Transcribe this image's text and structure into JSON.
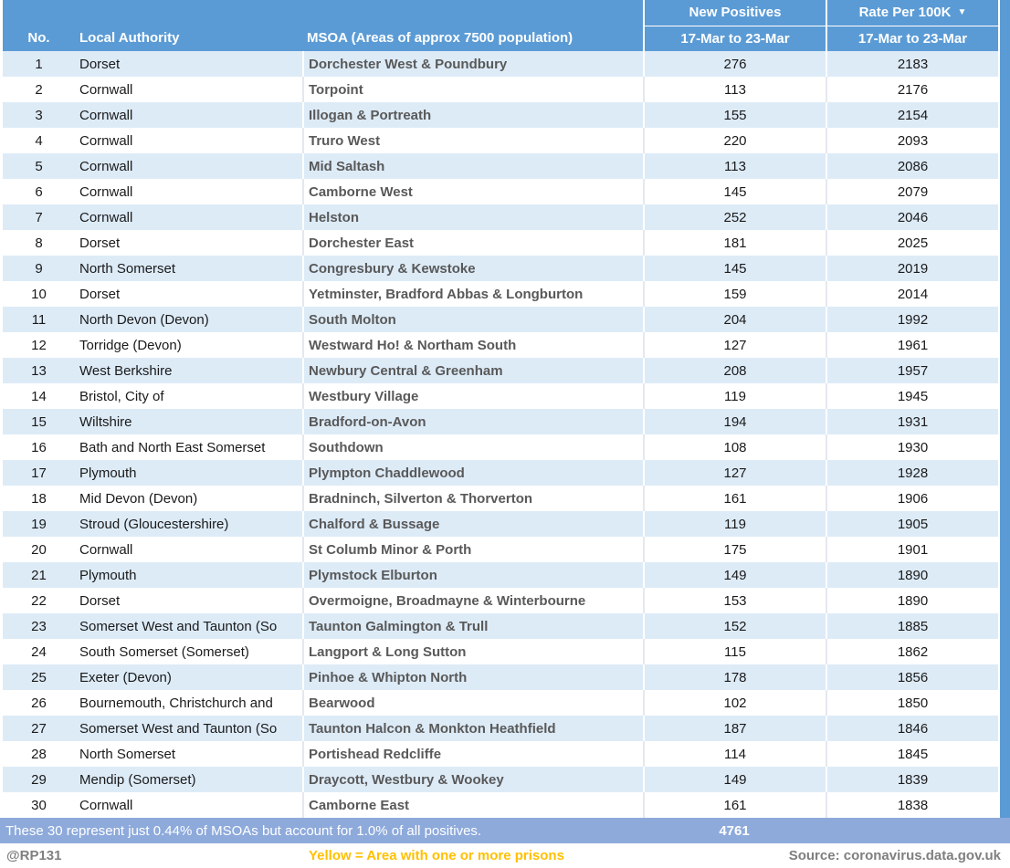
{
  "table": {
    "header": {
      "no": "No.",
      "local_authority": "Local Authority",
      "msoa": "MSOA (Areas of approx 7500 population)",
      "new_positives": "New Positives",
      "rate": "Rate Per 100K",
      "period": "17-Mar to 23-Mar",
      "sort_icon": "▼"
    }
  },
  "chart_data": {
    "type": "table",
    "columns": [
      "No.",
      "Local Authority",
      "MSOA (Areas of approx 7500 population)",
      "New Positives 17-Mar to 23-Mar",
      "Rate Per 100K 17-Mar to 23-Mar"
    ],
    "sorted_by": "Rate Per 100K (descending)",
    "rows": [
      [
        1,
        "Dorset",
        "Dorchester West & Poundbury",
        276,
        2183
      ],
      [
        2,
        "Cornwall",
        "Torpoint",
        113,
        2176
      ],
      [
        3,
        "Cornwall",
        "Illogan & Portreath",
        155,
        2154
      ],
      [
        4,
        "Cornwall",
        "Truro West",
        220,
        2093
      ],
      [
        5,
        "Cornwall",
        "Mid Saltash",
        113,
        2086
      ],
      [
        6,
        "Cornwall",
        "Camborne West",
        145,
        2079
      ],
      [
        7,
        "Cornwall",
        "Helston",
        252,
        2046
      ],
      [
        8,
        "Dorset",
        "Dorchester East",
        181,
        2025
      ],
      [
        9,
        "North Somerset",
        "Congresbury & Kewstoke",
        145,
        2019
      ],
      [
        10,
        "Dorset",
        "Yetminster, Bradford Abbas & Longburton",
        159,
        2014
      ],
      [
        11,
        "North Devon (Devon)",
        "South Molton",
        204,
        1992
      ],
      [
        12,
        "Torridge (Devon)",
        "Westward Ho! & Northam South",
        127,
        1961
      ],
      [
        13,
        "West Berkshire",
        "Newbury Central & Greenham",
        208,
        1957
      ],
      [
        14,
        "Bristol, City of",
        "Westbury Village",
        119,
        1945
      ],
      [
        15,
        "Wiltshire",
        "Bradford-on-Avon",
        194,
        1931
      ],
      [
        16,
        "Bath and North East Somerset",
        "Southdown",
        108,
        1930
      ],
      [
        17,
        "Plymouth",
        "Plympton Chaddlewood",
        127,
        1928
      ],
      [
        18,
        "Mid Devon (Devon)",
        "Bradninch, Silverton & Thorverton",
        161,
        1906
      ],
      [
        19,
        "Stroud (Gloucestershire)",
        "Chalford & Bussage",
        119,
        1905
      ],
      [
        20,
        "Cornwall",
        "St Columb Minor & Porth",
        175,
        1901
      ],
      [
        21,
        "Plymouth",
        "Plymstock Elburton",
        149,
        1890
      ],
      [
        22,
        "Dorset",
        "Overmoigne, Broadmayne & Winterbourne",
        153,
        1890
      ],
      [
        23,
        "Somerset West and Taunton (So",
        "Taunton Galmington & Trull",
        152,
        1885
      ],
      [
        24,
        "South Somerset (Somerset)",
        "Langport & Long Sutton",
        115,
        1862
      ],
      [
        25,
        "Exeter (Devon)",
        "Pinhoe & Whipton North",
        178,
        1856
      ],
      [
        26,
        "Bournemouth, Christchurch and",
        "Bearwood",
        102,
        1850
      ],
      [
        27,
        "Somerset West and Taunton (So",
        "Taunton Halcon & Monkton Heathfield",
        187,
        1846
      ],
      [
        28,
        "North Somerset",
        "Portishead Redcliffe",
        114,
        1845
      ],
      [
        29,
        "Mendip (Somerset)",
        "Draycott, Westbury & Wookey",
        149,
        1839
      ],
      [
        30,
        "Cornwall",
        "Camborne East",
        161,
        1838
      ]
    ],
    "total_new_positives": 4761
  },
  "summary": {
    "text": "These 30 represent just 0.44% of MSOAs but account for 1.0% of all positives.",
    "total": "4761"
  },
  "footer": {
    "handle": "@RP131",
    "legend": "Yellow = Area with one or more prisons",
    "source": "Source: coronavirus.data.gov.uk"
  },
  "colors": {
    "header_blue": "#5B9BD5",
    "row_stripe_blue": "#DDEBF7",
    "summary_band_blue": "#8EAADB",
    "prison_yellow": "#FFC000",
    "muted_gray_text": "#7F7F7F",
    "msoa_text_gray": "#595959"
  }
}
